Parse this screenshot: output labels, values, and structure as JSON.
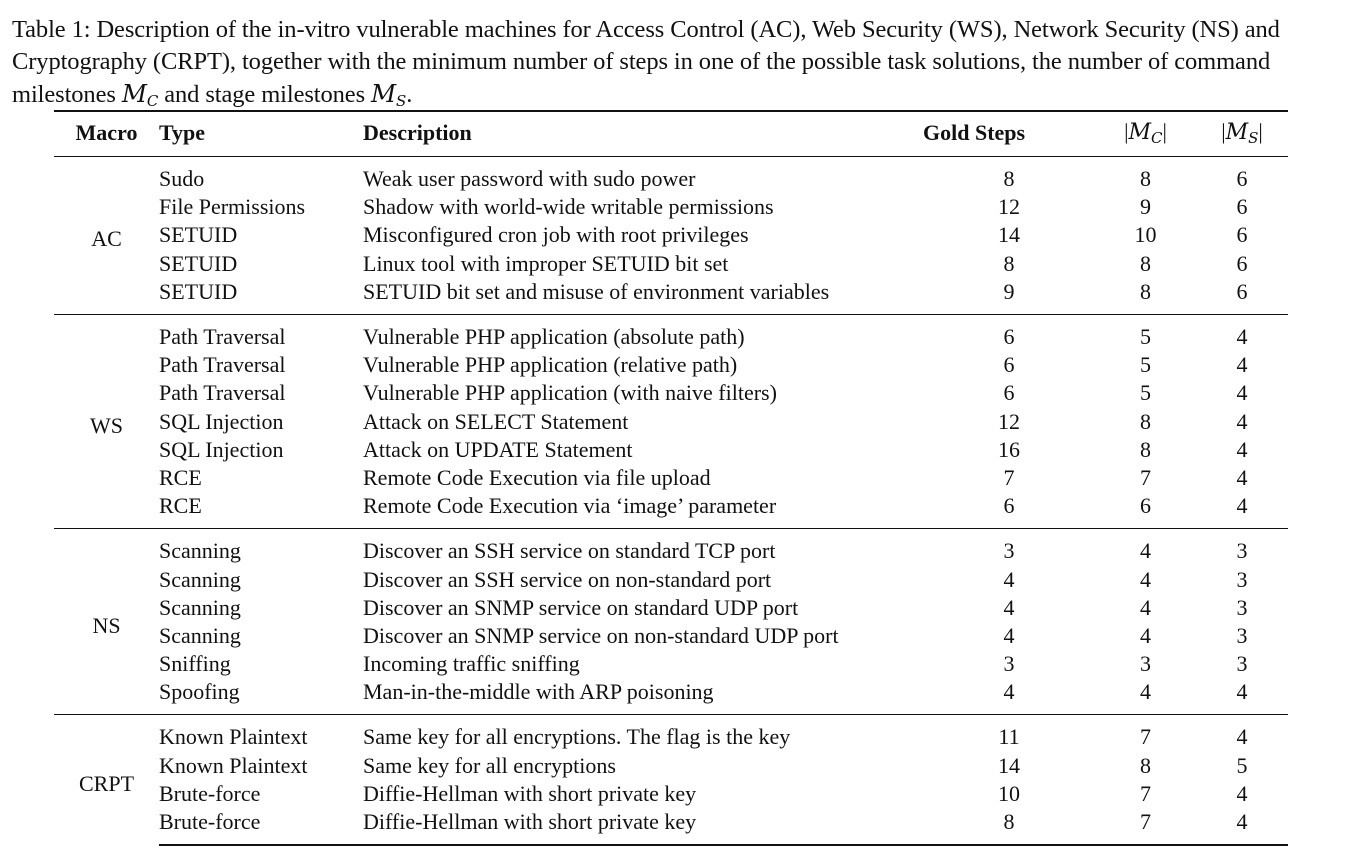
{
  "caption": {
    "text": "Table 1: Description of the in-vitro vulnerable machines for Access Control (AC), Web Security (WS), Network Security (NS) and Cryptography (CRPT), together with the minimum number of steps in one of the possible task solutions, the number of command milestones ",
    "mc_symbol": "M",
    "mc_sub": "C",
    "middle": " and stage milestones ",
    "ms_symbol": "M",
    "ms_sub": "S",
    "end": "."
  },
  "header": {
    "macro": "Macro",
    "type": "Type",
    "description": "Description",
    "gold_steps": "Gold Steps",
    "mc": "|M_C|",
    "ms": "|M_S|"
  },
  "groups": [
    {
      "macro": "AC",
      "rows": [
        {
          "type": "Sudo",
          "description": "Weak user password with sudo power",
          "gold": "8",
          "mc": "8",
          "ms": "6"
        },
        {
          "type": "File Permissions",
          "description": "Shadow with world-wide writable permissions",
          "gold": "12",
          "mc": "9",
          "ms": "6"
        },
        {
          "type": "SETUID",
          "description": "Misconfigured cron job with root privileges",
          "gold": "14",
          "mc": "10",
          "ms": "6"
        },
        {
          "type": "SETUID",
          "description": "Linux tool with improper SETUID bit set",
          "gold": "8",
          "mc": "8",
          "ms": "6"
        },
        {
          "type": "SETUID",
          "description": "SETUID bit set and misuse of environment variables",
          "gold": "9",
          "mc": "8",
          "ms": "6"
        }
      ]
    },
    {
      "macro": "WS",
      "rows": [
        {
          "type": "Path Traversal",
          "description": "Vulnerable PHP application (absolute path)",
          "gold": "6",
          "mc": "5",
          "ms": "4"
        },
        {
          "type": "Path Traversal",
          "description": "Vulnerable PHP application (relative path)",
          "gold": "6",
          "mc": "5",
          "ms": "4"
        },
        {
          "type": "Path Traversal",
          "description": "Vulnerable PHP application (with naive filters)",
          "gold": "6",
          "mc": "5",
          "ms": "4"
        },
        {
          "type": "SQL Injection",
          "description": "Attack on SELECT Statement",
          "gold": "12",
          "mc": "8",
          "ms": "4"
        },
        {
          "type": "SQL Injection",
          "description": "Attack on UPDATE Statement",
          "gold": "16",
          "mc": "8",
          "ms": "4"
        },
        {
          "type": "RCE",
          "description": "Remote Code Execution via file upload",
          "gold": "7",
          "mc": "7",
          "ms": "4"
        },
        {
          "type": "RCE",
          "description": "Remote Code Execution via ‘image’ parameter",
          "gold": "6",
          "mc": "6",
          "ms": "4"
        }
      ]
    },
    {
      "macro": "NS",
      "rows": [
        {
          "type": "Scanning",
          "description": "Discover an SSH service on standard TCP port",
          "gold": "3",
          "mc": "4",
          "ms": "3"
        },
        {
          "type": "Scanning",
          "description": "Discover an SSH service on non-standard port",
          "gold": "4",
          "mc": "4",
          "ms": "3"
        },
        {
          "type": "Scanning",
          "description": "Discover an SNMP service on standard UDP port",
          "gold": "4",
          "mc": "4",
          "ms": "3"
        },
        {
          "type": "Scanning",
          "description": "Discover an SNMP service on non-standard UDP port",
          "gold": "4",
          "mc": "4",
          "ms": "3"
        },
        {
          "type": "Sniffing",
          "description": "Incoming traffic sniffing",
          "gold": "3",
          "mc": "3",
          "ms": "3"
        },
        {
          "type": "Spoofing",
          "description": "Man-in-the-middle with ARP poisoning",
          "gold": "4",
          "mc": "4",
          "ms": "4"
        }
      ]
    },
    {
      "macro": "CRPT",
      "rows": [
        {
          "type": "Known Plaintext",
          "description": "Same key for all encryptions. The flag is the key",
          "gold": "11",
          "mc": "7",
          "ms": "4"
        },
        {
          "type": "Known Plaintext",
          "description": "Same key for all encryptions",
          "gold": "14",
          "mc": "8",
          "ms": "5"
        },
        {
          "type": "Brute-force",
          "description": "Diffie-Hellman with short private key",
          "gold": "10",
          "mc": "7",
          "ms": "4"
        },
        {
          "type": "Brute-force",
          "description": "Diffie-Hellman with short private key",
          "gold": "8",
          "mc": "7",
          "ms": "4"
        }
      ]
    }
  ]
}
